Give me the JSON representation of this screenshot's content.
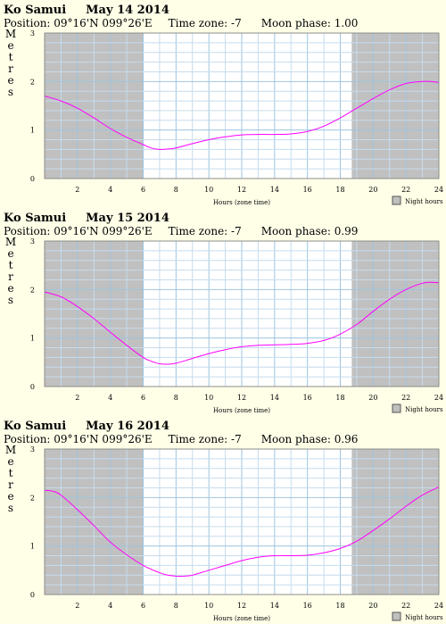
{
  "panels": [
    {
      "location": "Ko Samui",
      "date": "May 14 2014",
      "position": "Position: 09°16'N 099°26'E",
      "timezone": "Time zone: -7",
      "moon": "Moon phase: 1.00"
    },
    {
      "location": "Ko Samui",
      "date": "May 15 2014",
      "position": "Position: 09°16'N 099°26'E",
      "timezone": "Time zone: -7",
      "moon": "Moon phase: 0.99"
    },
    {
      "location": "Ko Samui",
      "date": "May 16 2014",
      "position": "Position: 09°16'N 099°26'E",
      "timezone": "Time zone: -7",
      "moon": "Moon phase: 0.96"
    }
  ],
  "chart_data": [
    {
      "type": "line",
      "ylabel": "Metres",
      "xlabel": "Hours (zone time)",
      "legend": "Night hours",
      "xlim": [
        0,
        24
      ],
      "ylim": [
        0,
        3
      ],
      "xticks": [
        "2",
        "4",
        "6",
        "8",
        "10",
        "12",
        "14",
        "16",
        "18",
        "20",
        "22",
        "24"
      ],
      "yticks": [
        "0",
        "1",
        "2",
        "3"
      ],
      "night": [
        [
          0,
          6
        ],
        [
          18.7,
          24
        ]
      ],
      "line_color": "#ff00ff",
      "night_color": "#c0c0c0",
      "x": [
        0,
        1,
        2,
        3,
        4,
        5,
        6,
        6.5,
        7,
        7.5,
        8,
        9,
        10,
        11,
        12,
        13,
        14,
        15,
        16,
        17,
        18,
        19,
        20,
        21,
        22,
        23,
        23.5,
        24
      ],
      "y": [
        1.7,
        1.6,
        1.45,
        1.25,
        1.03,
        0.85,
        0.7,
        0.63,
        0.6,
        0.61,
        0.63,
        0.72,
        0.8,
        0.86,
        0.9,
        0.91,
        0.91,
        0.92,
        0.97,
        1.08,
        1.25,
        1.45,
        1.65,
        1.83,
        1.96,
        2.0,
        2.0,
        1.98
      ]
    },
    {
      "type": "line",
      "ylabel": "Metres",
      "xlabel": "Hours (zone time)",
      "legend": "Night hours",
      "xlim": [
        0,
        24
      ],
      "ylim": [
        0,
        3
      ],
      "xticks": [
        "2",
        "4",
        "6",
        "8",
        "10",
        "12",
        "14",
        "16",
        "18",
        "20",
        "22",
        "24"
      ],
      "yticks": [
        "0",
        "1",
        "2",
        "3"
      ],
      "night": [
        [
          0,
          6
        ],
        [
          18.7,
          24
        ]
      ],
      "line_color": "#ff00ff",
      "night_color": "#c0c0c0",
      "x": [
        0,
        1,
        2,
        3,
        4,
        5,
        6,
        6.5,
        7,
        7.5,
        8,
        9,
        10,
        11,
        12,
        13,
        14,
        15,
        16,
        17,
        18,
        19,
        20,
        21,
        22,
        23,
        23.5,
        24
      ],
      "y": [
        1.95,
        1.85,
        1.65,
        1.4,
        1.12,
        0.85,
        0.6,
        0.52,
        0.47,
        0.46,
        0.48,
        0.58,
        0.68,
        0.76,
        0.82,
        0.85,
        0.86,
        0.87,
        0.89,
        0.95,
        1.08,
        1.28,
        1.55,
        1.8,
        2.0,
        2.13,
        2.15,
        2.14
      ]
    },
    {
      "type": "line",
      "ylabel": "Metres",
      "xlabel": "Hours (zone time)",
      "legend": "Night hours",
      "xlim": [
        0,
        24
      ],
      "ylim": [
        0,
        3
      ],
      "xticks": [
        "2",
        "4",
        "6",
        "8",
        "10",
        "12",
        "14",
        "16",
        "18",
        "20",
        "22",
        "24"
      ],
      "yticks": [
        "0",
        "1",
        "2",
        "3"
      ],
      "night": [
        [
          0,
          6
        ],
        [
          18.7,
          24
        ]
      ],
      "line_color": "#ff00ff",
      "night_color": "#c0c0c0",
      "x": [
        0,
        0.5,
        1,
        2,
        3,
        4,
        5,
        6,
        7,
        7.5,
        8,
        8.5,
        9,
        10,
        11,
        12,
        13,
        14,
        15,
        16,
        17,
        18,
        19,
        20,
        21,
        22,
        23,
        24
      ],
      "y": [
        2.15,
        2.13,
        2.05,
        1.75,
        1.42,
        1.08,
        0.82,
        0.6,
        0.45,
        0.4,
        0.38,
        0.38,
        0.4,
        0.5,
        0.6,
        0.7,
        0.77,
        0.8,
        0.8,
        0.81,
        0.86,
        0.95,
        1.1,
        1.32,
        1.56,
        1.82,
        2.05,
        2.22
      ]
    }
  ]
}
